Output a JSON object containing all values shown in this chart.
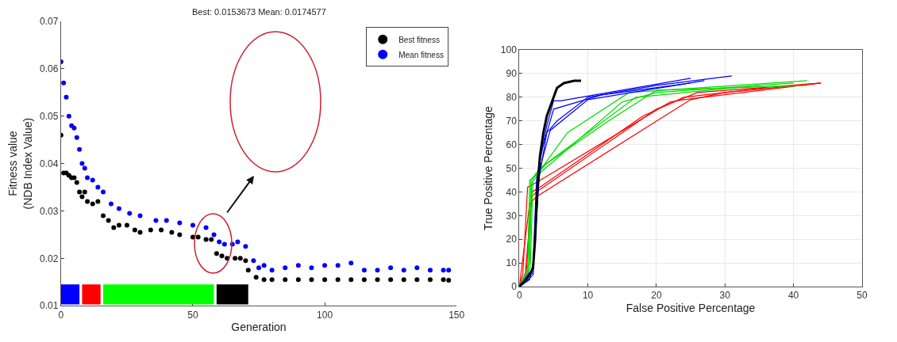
{
  "chart_data": [
    {
      "type": "scatter",
      "title": "Best: 0.0153673 Mean: 0.0174577",
      "xlabel": "Generation",
      "ylabel": "Fitness value\n(NDB Index Value)",
      "xlim": [
        0,
        150
      ],
      "xticks": [
        0,
        50,
        100,
        150
      ],
      "ylim": [
        0.01,
        0.07
      ],
      "yticks": [
        0.01,
        0.02,
        0.03,
        0.04,
        0.05,
        0.06,
        0.07
      ],
      "legend": "top right",
      "marker": "circle",
      "grid": false,
      "series": [
        {
          "name": "Best fitness",
          "color": "#000000",
          "x": [
            0,
            1,
            2,
            3,
            4,
            5,
            6,
            7,
            8,
            9,
            10,
            12,
            14,
            16,
            18,
            20,
            22,
            25,
            28,
            30,
            34,
            38,
            42,
            45,
            50,
            52,
            55,
            57,
            59,
            61,
            63,
            66,
            68,
            70,
            71,
            74,
            77,
            80,
            85,
            90,
            95,
            100,
            105,
            110,
            115,
            120,
            125,
            130,
            135,
            140,
            145,
            147
          ],
          "values": [
            0.046,
            0.038,
            0.038,
            0.0375,
            0.037,
            0.037,
            0.036,
            0.034,
            0.033,
            0.034,
            0.032,
            0.0315,
            0.032,
            0.029,
            0.028,
            0.0265,
            0.027,
            0.027,
            0.026,
            0.0255,
            0.026,
            0.026,
            0.0255,
            0.025,
            0.0245,
            0.0245,
            0.024,
            0.024,
            0.021,
            0.0205,
            0.02,
            0.02,
            0.02,
            0.0195,
            0.0175,
            0.016,
            0.0155,
            0.0155,
            0.0155,
            0.0155,
            0.0155,
            0.0155,
            0.0155,
            0.0155,
            0.0155,
            0.0155,
            0.0155,
            0.0155,
            0.0155,
            0.0155,
            0.0155,
            0.0154
          ]
        },
        {
          "name": "Mean fitness",
          "color": "#0000ff",
          "x": [
            0,
            1,
            2,
            3,
            4,
            5,
            6,
            7,
            8,
            9,
            10,
            12,
            14,
            16,
            19,
            22,
            26,
            30,
            36,
            40,
            45,
            50,
            55,
            58,
            60,
            62,
            65,
            67,
            70,
            73,
            75,
            77,
            80,
            85,
            90,
            95,
            100,
            105,
            110,
            115,
            120,
            125,
            130,
            135,
            140,
            145,
            147
          ],
          "values": [
            0.0615,
            0.057,
            0.054,
            0.05,
            0.048,
            0.0475,
            0.0455,
            0.043,
            0.04,
            0.039,
            0.037,
            0.0365,
            0.035,
            0.034,
            0.0315,
            0.0305,
            0.0295,
            0.029,
            0.028,
            0.028,
            0.0275,
            0.027,
            0.0265,
            0.025,
            0.0235,
            0.023,
            0.023,
            0.0235,
            0.0225,
            0.0195,
            0.018,
            0.0185,
            0.0175,
            0.018,
            0.0185,
            0.018,
            0.0185,
            0.0185,
            0.019,
            0.0175,
            0.0175,
            0.018,
            0.0175,
            0.018,
            0.0175,
            0.0175,
            0.0175
          ]
        }
      ],
      "bands": [
        {
          "axis": "x",
          "from": 0,
          "to": 7,
          "color": "#0000ff"
        },
        {
          "axis": "x",
          "from": 8,
          "to": 15,
          "color": "#ff0000"
        },
        {
          "axis": "x",
          "from": 16,
          "to": 58,
          "color": "#00ff00"
        },
        {
          "axis": "x",
          "from": 59,
          "to": 71,
          "color": "#000000"
        }
      ]
    },
    {
      "type": "line",
      "xlabel": "False Positive Percentage",
      "ylabel": "True Positive Percentage",
      "xlim": [
        0,
        50
      ],
      "xticks": [
        0,
        10,
        20,
        30,
        40,
        50
      ],
      "ylim": [
        0,
        100
      ],
      "yticks": [
        0,
        10,
        20,
        30,
        40,
        50,
        60,
        70,
        80,
        90,
        100
      ],
      "grid": true,
      "legend": false,
      "series": [
        {
          "color": "#ff0000",
          "x": [
            0,
            0.5,
            1.2,
            2.5,
            22,
            24,
            44
          ],
          "values": [
            0,
            5,
            42,
            44,
            78,
            79,
            86
          ]
        },
        {
          "color": "#ff0000",
          "x": [
            0,
            0.8,
            1.8,
            2.5,
            20,
            26,
            44
          ],
          "values": [
            0,
            3,
            38,
            40,
            75,
            82,
            86
          ]
        },
        {
          "color": "#ff0000",
          "x": [
            0,
            1.5,
            2.5,
            25,
            30,
            44
          ],
          "values": [
            0,
            35,
            38,
            79,
            82,
            86
          ]
        },
        {
          "color": "#ff0000",
          "x": [
            0,
            1,
            1.8,
            3,
            18,
            24,
            36
          ],
          "values": [
            0,
            5,
            40,
            42,
            72,
            80,
            84
          ]
        },
        {
          "color": "#00dd00",
          "x": [
            0,
            1.2,
            1.5,
            2.5,
            7,
            16,
            42
          ],
          "values": [
            0,
            5,
            45,
            47,
            65,
            82,
            87
          ]
        },
        {
          "color": "#00dd00",
          "x": [
            0,
            1.5,
            1.8,
            3,
            15,
            20,
            40
          ],
          "values": [
            0,
            10,
            44,
            48,
            78,
            82,
            86
          ]
        },
        {
          "color": "#00dd00",
          "x": [
            0,
            1.3,
            1.7,
            3,
            17,
            35
          ],
          "values": [
            0,
            3,
            45,
            50,
            80,
            85
          ]
        },
        {
          "color": "#00dd00",
          "x": [
            0,
            1.6,
            2,
            4,
            13,
            20,
            42
          ],
          "values": [
            0,
            8,
            46,
            52,
            70,
            83,
            85
          ]
        },
        {
          "color": "#0000ff",
          "x": [
            0,
            1,
            2,
            2.5,
            3,
            4,
            5.5,
            10,
            20,
            31
          ],
          "values": [
            0,
            2,
            5,
            40,
            48,
            65,
            70,
            80,
            85,
            89
          ]
        },
        {
          "color": "#0000ff",
          "x": [
            0,
            1.5,
            2,
            2.5,
            4,
            5,
            6,
            11,
            25
          ],
          "values": [
            0,
            3,
            10,
            45,
            68,
            78.5,
            78.5,
            81,
            88
          ]
        },
        {
          "color": "#0000ff",
          "x": [
            0,
            2,
            3,
            4.5,
            10,
            27
          ],
          "values": [
            0,
            8,
            50,
            66,
            79,
            87
          ]
        },
        {
          "color": "#0000ff",
          "x": [
            0,
            2,
            3,
            5,
            12,
            25
          ],
          "values": [
            0,
            6,
            55,
            75,
            81,
            86
          ]
        },
        {
          "color": "#000000",
          "x": [
            0,
            1,
            1.5,
            2,
            2.3,
            2.6,
            3,
            3.5,
            4,
            5,
            5.5,
            6.5,
            8,
            9
          ],
          "values": [
            0,
            3,
            5,
            8,
            20,
            40,
            55,
            65,
            72,
            80,
            84,
            86,
            87,
            87
          ]
        }
      ]
    }
  ]
}
